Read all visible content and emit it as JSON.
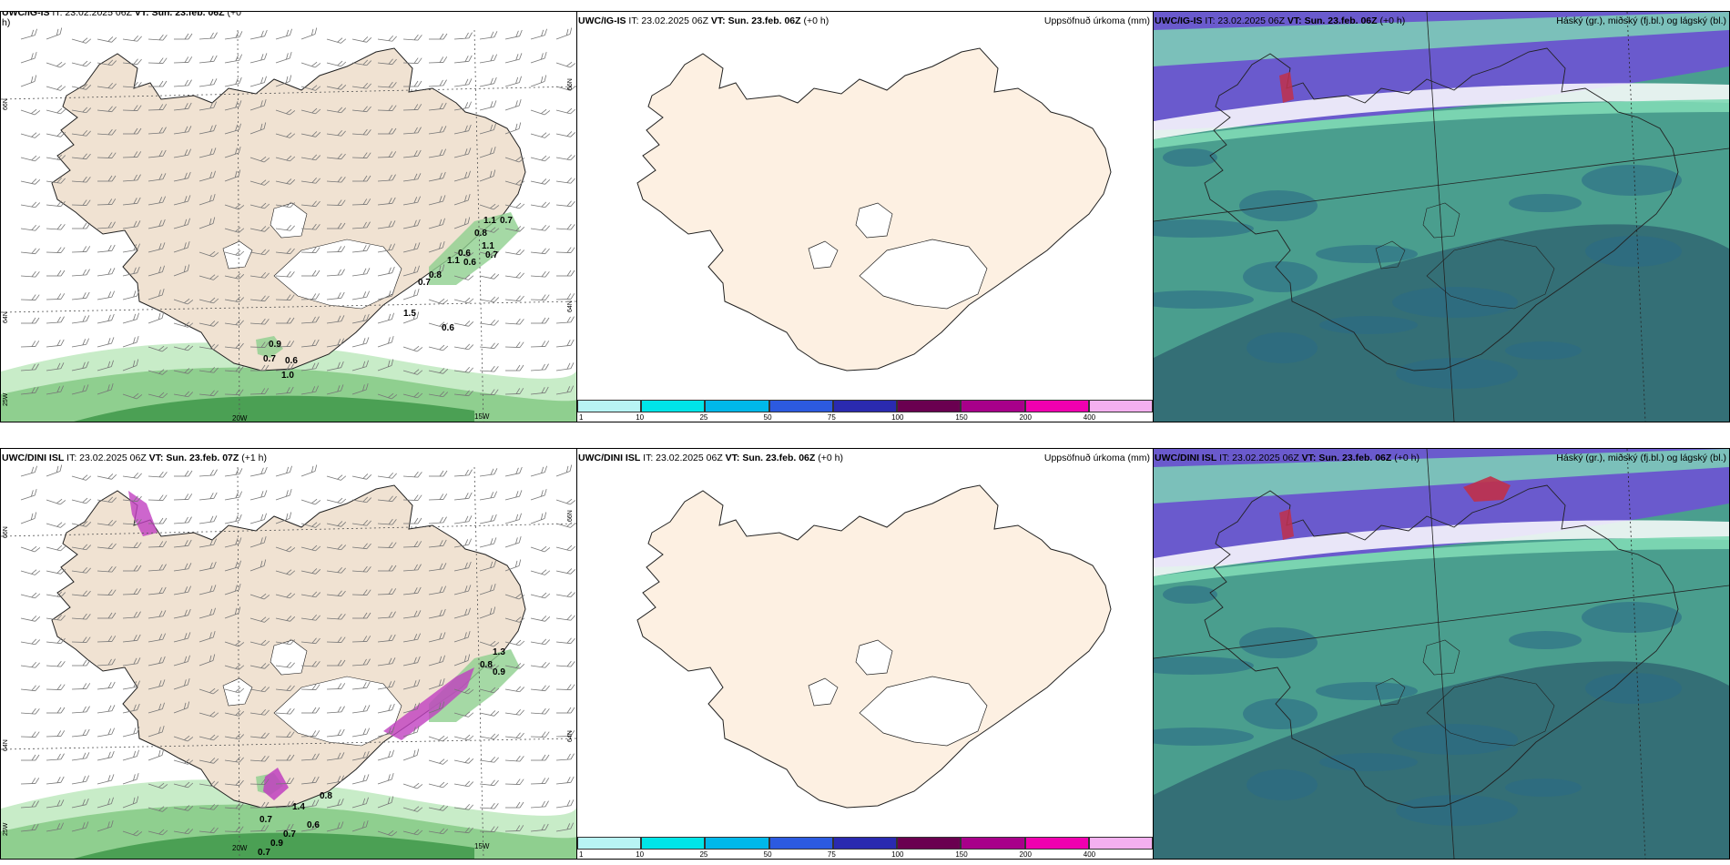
{
  "panels": [
    {
      "id": "p1",
      "model": "UWC/IG-IS",
      "it": "IT: 23.02.2025 06Z",
      "vt_label": "VT:",
      "vt": "Sun. 23.feb. 06Z",
      "lead": "(+0",
      "lead_wrap": "h)",
      "right_title": "",
      "lat_labels": [
        "66N",
        "64N",
        "25W"
      ],
      "lat_labels_right": [
        "66N",
        "64N"
      ],
      "lon_labels": [
        "20W",
        "15W"
      ],
      "values": [
        "1.1",
        "0.7",
        "0.8",
        "1.1",
        "0.7",
        "0.6",
        "0.8",
        "1.1",
        "0.6",
        "0.7",
        "1.5",
        "0.6",
        "0.9",
        "0.7",
        "0.6",
        "1.0"
      ]
    },
    {
      "id": "p2",
      "model": "UWC/IG-IS",
      "it": "IT: 23.02.2025 06Z",
      "vt_label": "VT:",
      "vt": "Sun. 23.feb. 06Z",
      "lead": "(+0 h)",
      "right_title": "Uppsöfnuð úrkoma (mm)",
      "colorbar": [
        "1",
        "10",
        "25",
        "50",
        "75",
        "100",
        "150",
        "200",
        "400"
      ]
    },
    {
      "id": "p3",
      "model": "UWC/IG-IS",
      "it": "IT: 23.02.2025 06Z",
      "vt_label": "VT:",
      "vt": "Sun. 23.feb. 06Z",
      "lead": "(+0 h)",
      "right_title": "Háský (gr.), miðský (fj.bl.) og lágský (bl.)"
    },
    {
      "id": "p4",
      "model": "UWC/DINI ISL",
      "it": "IT: 23.02.2025 06Z",
      "vt_label": "VT:",
      "vt": "Sun. 23.feb. 07Z",
      "lead": "(+1 h)",
      "right_title": "",
      "lat_labels": [
        "66N",
        "64N",
        "25W"
      ],
      "lat_labels_right": [
        "66N",
        "64N"
      ],
      "lon_labels": [
        "20W",
        "15W"
      ],
      "values": [
        "1.3",
        "0.8",
        "0.9",
        "1.4",
        "0.8",
        "0.7",
        "0.7",
        "0.9",
        "0.7",
        "0.6"
      ]
    },
    {
      "id": "p5",
      "model": "UWC/DINI ISL",
      "it": "IT: 23.02.2025 06Z",
      "vt_label": "VT:",
      "vt": "Sun. 23.feb. 06Z",
      "lead": "(+0 h)",
      "right_title": "Uppsöfnuð úrkoma (mm)",
      "colorbar": [
        "1",
        "10",
        "25",
        "50",
        "75",
        "100",
        "150",
        "200",
        "400"
      ]
    },
    {
      "id": "p6",
      "model": "UWC/DINI ISL",
      "it": "IT: 23.02.2025 06Z",
      "vt_label": "VT:",
      "vt": "Sun. 23.feb. 06Z",
      "lead": "(+0 h)",
      "right_title": "Háský (gr.), miðský (fj.bl.) og lágský (bl.)"
    }
  ],
  "colors": {
    "land": "#f0e2d2",
    "land_light": "#fdf0e2",
    "precip_light": "#c8ecc8",
    "precip_mid": "#8fcf8f",
    "precip_dark": "#2e8b3a",
    "snow_magenta": "#c040c0",
    "cloud_high": "#7fd9b5",
    "cloud_mid": "#4a9e8e",
    "cloud_low": "#2e5f6e",
    "cloud_violet": "#6a5acd",
    "colorbar": [
      "#b8f4f4",
      "#00e5e8",
      "#00b8ea",
      "#2c5ae0",
      "#2a2ab0",
      "#6a0050",
      "#a8008a",
      "#f000b0",
      "#f4b0f0"
    ]
  }
}
